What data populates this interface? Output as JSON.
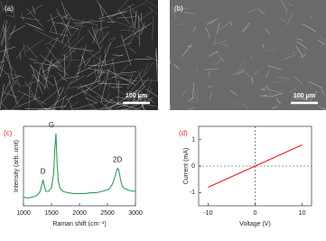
{
  "images": [
    {
      "label": "(a)",
      "scale_bar": "100 μm"
    },
    {
      "label": "(b)",
      "scale_bar": "100 μm"
    }
  ],
  "chart_data": [
    {
      "type": "line",
      "panel_label": "(c)",
      "x_label": "Raman shift (cm⁻¹)",
      "y_label": "Intensity (arb. unit)",
      "xlim": [
        1000,
        3000
      ],
      "xticks": [
        1000,
        1500,
        2000,
        2500,
        3000
      ],
      "ylim": [
        0,
        1.1
      ],
      "series": [
        {
          "color": "#2f9a5a",
          "x": [
            1000,
            1050,
            1100,
            1150,
            1200,
            1250,
            1300,
            1330,
            1350,
            1370,
            1400,
            1450,
            1500,
            1540,
            1560,
            1580,
            1600,
            1620,
            1650,
            1700,
            1800,
            1900,
            2000,
            2100,
            2200,
            2300,
            2400,
            2450,
            2500,
            2550,
            2600,
            2650,
            2680,
            2700,
            2730,
            2760,
            2800,
            2900,
            3000
          ],
          "values": [
            0.12,
            0.11,
            0.11,
            0.12,
            0.13,
            0.15,
            0.2,
            0.3,
            0.36,
            0.28,
            0.2,
            0.2,
            0.25,
            0.45,
            0.8,
            1.0,
            0.6,
            0.35,
            0.25,
            0.2,
            0.18,
            0.17,
            0.17,
            0.17,
            0.18,
            0.18,
            0.2,
            0.21,
            0.22,
            0.25,
            0.32,
            0.45,
            0.52,
            0.5,
            0.38,
            0.28,
            0.24,
            0.21,
            0.2
          ]
        }
      ],
      "annotations": [
        {
          "text": "D",
          "x": 1350
        },
        {
          "text": "G",
          "x": 1580
        },
        {
          "text": "2D",
          "x": 2680
        }
      ]
    },
    {
      "type": "line",
      "panel_label": "(d)",
      "x_label": "Voltage (V)",
      "y_label": "Current (mA)",
      "xlim": [
        -12,
        12
      ],
      "xticks": [
        -10,
        0,
        10
      ],
      "ylim": [
        -1.5,
        1.5
      ],
      "yticks": [
        -1,
        0,
        1
      ],
      "zero_lines": true,
      "series": [
        {
          "color": "#e02020",
          "x": [
            -10,
            10
          ],
          "values": [
            -0.8,
            0.8
          ]
        }
      ]
    }
  ]
}
